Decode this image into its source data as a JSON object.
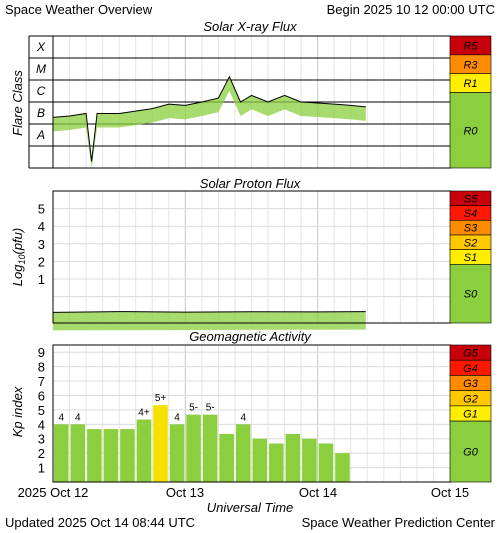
{
  "header": {
    "left": "Space Weather Overview",
    "right": "Begin 2025 10 12 00:00 UTC"
  },
  "footer": {
    "left": "Updated 2025 Oct 14 08:44 UTC",
    "right": "Space Weather Prediction Center"
  },
  "colors": {
    "plot_green": "#8bcf3e",
    "bar_green": "#8bcf3e",
    "bar_yellow": "#f5e000",
    "scale_red": "#c8000a",
    "scale_redorange": "#ff1800",
    "scale_orange": "#ff8c00",
    "scale_amber": "#ffc800",
    "scale_yellow": "#ffee00",
    "scale_green": "#8bcf3e"
  },
  "chart_data": [
    {
      "type": "line",
      "title": "Solar X-ray Flux",
      "ylabel": "Flare Class",
      "y_scale": "log",
      "ylim": [
        1e-09,
        0.001
      ],
      "y_class_labels": [
        "X",
        "M",
        "C",
        "B",
        "A"
      ],
      "x": [
        "2025-10-12 00:00",
        "2025-10-12 03:00",
        "2025-10-12 06:00",
        "2025-10-12 07:00",
        "2025-10-12 08:00",
        "2025-10-12 12:00",
        "2025-10-12 18:00",
        "2025-10-12 21:00",
        "2025-10-13 00:00",
        "2025-10-13 03:00",
        "2025-10-13 06:00",
        "2025-10-13 08:00",
        "2025-10-13 10:00",
        "2025-10-13 12:00",
        "2025-10-13 15:00",
        "2025-10-13 18:00",
        "2025-10-13 21:00",
        "2025-10-14 00:00",
        "2025-10-14 03:00",
        "2025-10-14 06:00",
        "2025-10-14 08:44"
      ],
      "series": [
        {
          "values": [
            2e-07,
            2.3e-07,
            3e-07,
            2e-09,
            3e-07,
            3e-07,
            5e-07,
            8e-07,
            7e-07,
            1e-06,
            1.5e-06,
            1.4e-05,
            1e-06,
            2e-06,
            1e-06,
            2e-06,
            1e-06,
            9e-07,
            8e-07,
            7e-07,
            6e-07
          ]
        }
      ],
      "scale_labels": [
        "R5",
        "R3",
        "R1",
        "R0"
      ]
    },
    {
      "type": "line",
      "title": "Solar Proton Flux",
      "ylabel": "Log10(pfu)",
      "ylabel_main": "Log",
      "ylabel_sub": "10",
      "ylabel_tail": "(pfu)",
      "ylim": [
        -1.5,
        6
      ],
      "yticks": [
        "5",
        "4",
        "3",
        "2",
        "1"
      ],
      "x": [
        "2025-10-12 00:00",
        "2025-10-12 12:00",
        "2025-10-13 00:00",
        "2025-10-13 12:00",
        "2025-10-14 00:00",
        "2025-10-14 08:44"
      ],
      "series": [
        {
          "values": [
            -0.9,
            -0.85,
            -0.88,
            -0.86,
            -0.87,
            -0.85
          ]
        }
      ],
      "scale_labels": [
        "S5",
        "S4",
        "S3",
        "S2",
        "S1",
        "S0"
      ]
    },
    {
      "type": "bar",
      "title": "Geomagnetic Activity",
      "ylabel": "Kp index",
      "ylim": [
        0,
        9.5
      ],
      "yticks": [
        "9",
        "8",
        "7",
        "6",
        "5",
        "4",
        "3",
        "2",
        "1"
      ],
      "categories": [
        "2025-10-12 00",
        "2025-10-12 03",
        "2025-10-12 06",
        "2025-10-12 09",
        "2025-10-12 12",
        "2025-10-12 15",
        "2025-10-12 18",
        "2025-10-12 21",
        "2025-10-13 00",
        "2025-10-13 03",
        "2025-10-13 06",
        "2025-10-13 09",
        "2025-10-13 12",
        "2025-10-13 15",
        "2025-10-13 18",
        "2025-10-13 21",
        "2025-10-14 00",
        "2025-10-14 03",
        "2025-10-14 06"
      ],
      "values": [
        4.0,
        4.0,
        3.67,
        3.67,
        3.67,
        4.33,
        5.33,
        4.0,
        4.67,
        4.67,
        3.33,
        4.0,
        3.0,
        2.67,
        3.33,
        3.0,
        2.67,
        2.0,
        0
      ],
      "bar_labels": [
        "4",
        "4",
        "",
        "",
        "",
        "4+",
        "5+",
        "4",
        "5-",
        "5-",
        "",
        "4",
        "",
        "",
        "",
        "",
        "",
        "",
        ""
      ],
      "scale_labels": [
        "G5",
        "G4",
        "G3",
        "G2",
        "G1",
        "G0"
      ]
    }
  ],
  "x_axis": {
    "ticks": [
      "2025 Oct 12",
      "Oct 13",
      "Oct 14",
      "Oct 15"
    ],
    "label": "Universal Time"
  }
}
